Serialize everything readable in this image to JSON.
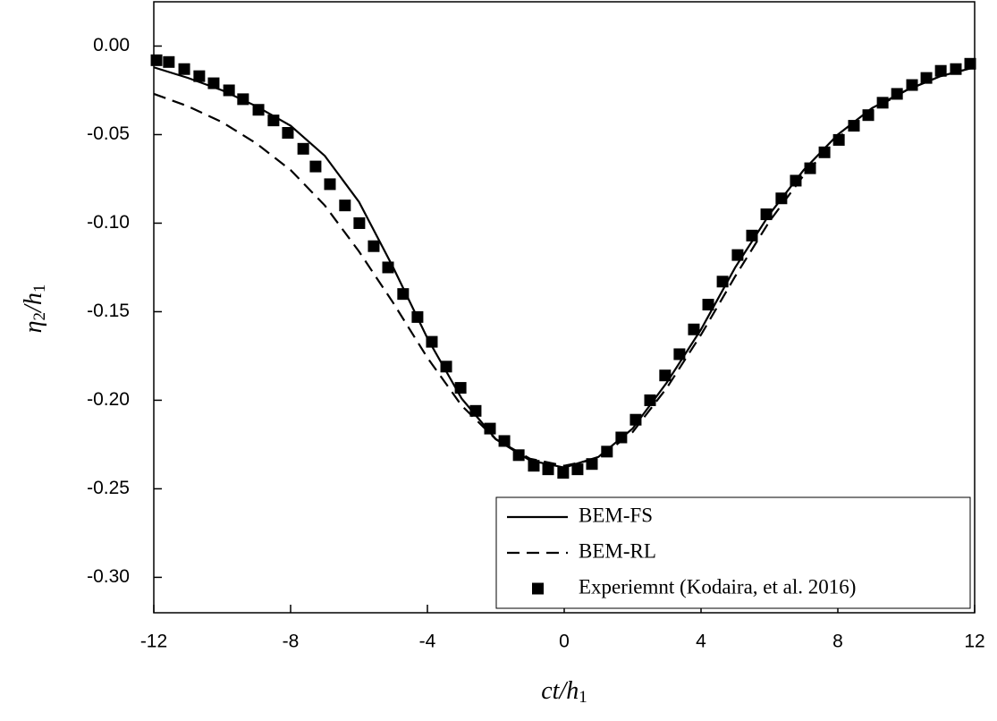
{
  "chart_data": {
    "type": "line",
    "xlabel": [
      "ct/h",
      "1"
    ],
    "ylabel": [
      "η",
      "2",
      "/h",
      "1"
    ],
    "xlim": [
      -12,
      12
    ],
    "xticks": [
      -12,
      -8,
      -4,
      0,
      4,
      8,
      12
    ],
    "ylim": [
      -0.32,
      0.025
    ],
    "yticks": [
      {
        "value": 0,
        "label": "0.00"
      },
      {
        "value": -0.05,
        "label": "-0.05"
      },
      {
        "value": -0.1,
        "label": "-0.10"
      },
      {
        "value": -0.15,
        "label": "-0.15"
      },
      {
        "value": -0.2,
        "label": "-0.20"
      },
      {
        "value": -0.25,
        "label": "-0.25"
      },
      {
        "value": -0.3,
        "label": "-0.30"
      }
    ],
    "grid": false,
    "legend": "lower right",
    "series": [
      {
        "name": "BEM-FS",
        "type": "line",
        "style": "solid",
        "color": "#000000",
        "x": [
          -12,
          -11,
          -10,
          -9,
          -8,
          -7,
          -6,
          -5,
          -4,
          -3,
          -2,
          -1,
          0,
          1,
          2,
          3,
          4,
          5,
          6,
          7,
          8,
          9,
          10,
          11,
          12
        ],
        "values": [
          -0.012,
          -0.018,
          -0.025,
          -0.034,
          -0.045,
          -0.062,
          -0.088,
          -0.125,
          -0.165,
          -0.199,
          -0.222,
          -0.234,
          -0.238,
          -0.232,
          -0.216,
          -0.19,
          -0.16,
          -0.125,
          -0.095,
          -0.07,
          -0.05,
          -0.035,
          -0.025,
          -0.017,
          -0.012
        ]
      },
      {
        "name": "BEM-RL",
        "type": "line",
        "style": "dashed",
        "color": "#000000",
        "x": [
          -12,
          -11,
          -10,
          -9,
          -8,
          -7,
          -6,
          -5,
          -4,
          -3,
          -2,
          -1,
          0,
          1,
          2,
          3,
          4,
          5,
          6,
          7,
          8,
          9,
          10,
          11,
          12
        ],
        "values": [
          -0.027,
          -0.034,
          -0.043,
          -0.055,
          -0.07,
          -0.09,
          -0.116,
          -0.145,
          -0.176,
          -0.203,
          -0.222,
          -0.233,
          -0.237,
          -0.233,
          -0.218,
          -0.193,
          -0.163,
          -0.13,
          -0.099,
          -0.073,
          -0.052,
          -0.036,
          -0.025,
          -0.017,
          -0.012
        ]
      },
      {
        "name": "Experiemnt (Kodaira, et al. 2016)",
        "type": "scatter",
        "marker": "square",
        "color": "#000000",
        "x": [
          -11.92,
          -11.56,
          -11.11,
          -10.67,
          -10.25,
          -9.8,
          -9.39,
          -8.94,
          -8.5,
          -8.08,
          -7.63,
          -7.27,
          -6.85,
          -6.41,
          -5.99,
          -5.57,
          -5.15,
          -4.71,
          -4.29,
          -3.87,
          -3.45,
          -3.03,
          -2.59,
          -2.17,
          -1.75,
          -1.33,
          -0.89,
          -0.47,
          -0.03,
          0.39,
          0.81,
          1.25,
          1.67,
          2.09,
          2.51,
          2.95,
          3.37,
          3.79,
          4.21,
          4.63,
          5.07,
          5.49,
          5.91,
          6.35,
          6.77,
          7.19,
          7.61,
          8.03,
          8.47,
          8.89,
          9.31,
          9.73,
          10.17,
          10.59,
          11.01,
          11.45,
          11.87
        ],
        "values": [
          -0.008,
          -0.009,
          -0.013,
          -0.017,
          -0.021,
          -0.025,
          -0.03,
          -0.036,
          -0.042,
          -0.049,
          -0.058,
          -0.068,
          -0.078,
          -0.09,
          -0.1,
          -0.113,
          -0.125,
          -0.14,
          -0.153,
          -0.167,
          -0.181,
          -0.193,
          -0.206,
          -0.216,
          -0.223,
          -0.231,
          -0.237,
          -0.239,
          -0.241,
          -0.239,
          -0.236,
          -0.229,
          -0.221,
          -0.211,
          -0.2,
          -0.186,
          -0.174,
          -0.16,
          -0.146,
          -0.133,
          -0.118,
          -0.107,
          -0.095,
          -0.086,
          -0.076,
          -0.069,
          -0.06,
          -0.053,
          -0.045,
          -0.039,
          -0.032,
          -0.027,
          -0.022,
          -0.018,
          -0.014,
          -0.013,
          -0.01
        ]
      }
    ]
  }
}
